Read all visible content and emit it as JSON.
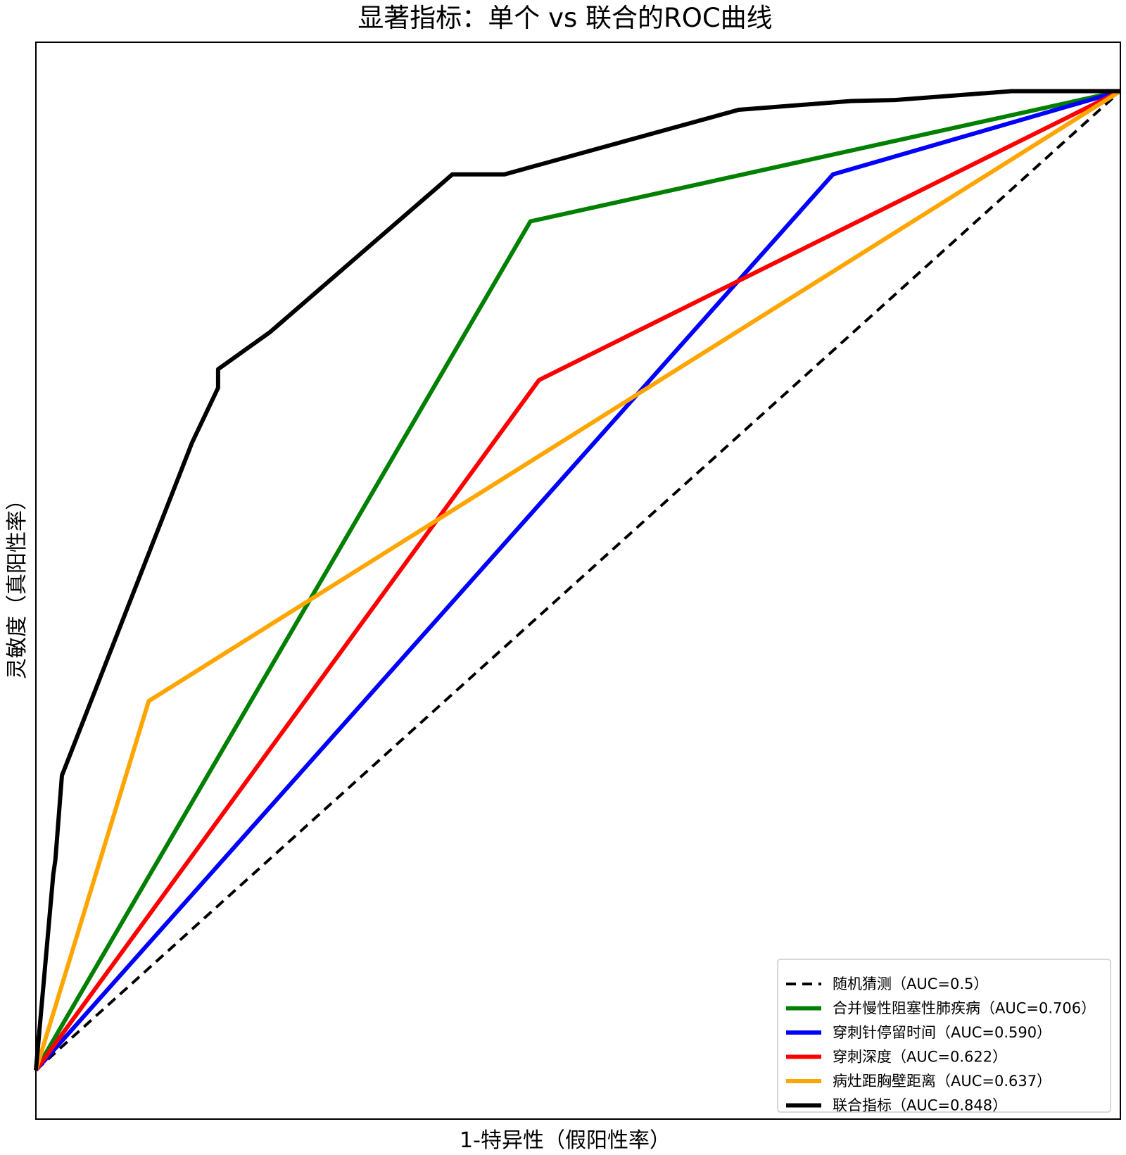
{
  "chart_data": {
    "type": "line",
    "title": "显著指标：单个 vs 联合的ROC曲线",
    "xlabel": "1-特异性（假阳性率）",
    "ylabel": "灵敏度（真阳性率）",
    "xlim": [
      0,
      1
    ],
    "ylim": [
      -0.05,
      1.05
    ],
    "grid": false,
    "legend_position": "lower right",
    "series": [
      {
        "name": "随机猜测（AUC=0.5）",
        "color": "#000000",
        "dash": true,
        "x": [
          0,
          1
        ],
        "y": [
          0,
          1
        ]
      },
      {
        "name": "合并慢性阻塞性肺疾病（AUC=0.706）",
        "color": "#008000",
        "dash": false,
        "x": [
          0,
          0.456,
          1
        ],
        "y": [
          0,
          0.867,
          1
        ]
      },
      {
        "name": "穿刺针停留时间（AUC=0.590）",
        "color": "#0000ff",
        "dash": false,
        "x": [
          0,
          0.735,
          1
        ],
        "y": [
          0,
          0.915,
          1
        ]
      },
      {
        "name": "穿刺深度（AUC=0.622）",
        "color": "#ff0000",
        "dash": false,
        "x": [
          0,
          0.464,
          1
        ],
        "y": [
          0,
          0.705,
          1
        ]
      },
      {
        "name": "病灶距胸壁距离（AUC=0.637）",
        "color": "#ffa500",
        "dash": false,
        "x": [
          0,
          0.104,
          1
        ],
        "y": [
          0,
          0.377,
          1
        ]
      },
      {
        "name": "联合指标（AUC=0.848）",
        "color": "#000000",
        "dash": false,
        "x": [
          0,
          0.016,
          0.018,
          0.024,
          0.144,
          0.168,
          0.168,
          0.216,
          0.384,
          0.432,
          0.648,
          0.752,
          0.752,
          0.792,
          0.9,
          1
        ],
        "y": [
          0,
          0.2,
          0.215,
          0.301,
          0.641,
          0.697,
          0.716,
          0.754,
          0.915,
          0.915,
          0.981,
          0.99,
          0.99,
          0.991,
          1.0,
          1
        ]
      }
    ]
  }
}
